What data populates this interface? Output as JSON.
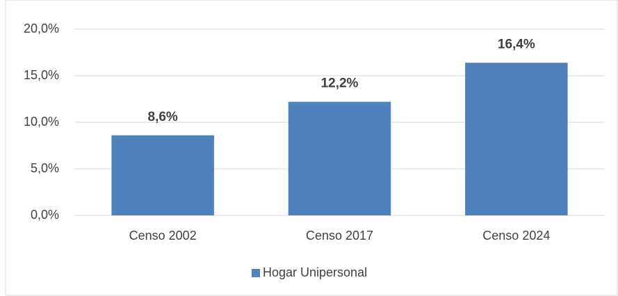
{
  "chart_data": {
    "type": "bar",
    "categories": [
      "Censo 2002",
      "Censo 2017",
      "Censo 2024"
    ],
    "series": [
      {
        "name": "Hogar Unipersonal",
        "color": "#4f81bd",
        "values": [
          8.6,
          12.2,
          16.4
        ],
        "value_labels": [
          "8,6%",
          "12,2%",
          "16,4%"
        ]
      }
    ],
    "ylim": [
      0,
      20
    ],
    "yticks": [
      {
        "value": 0,
        "label": "0,0%"
      },
      {
        "value": 5,
        "label": "5,0%"
      },
      {
        "value": 10,
        "label": "10,0%"
      },
      {
        "value": 15,
        "label": "15,0%"
      },
      {
        "value": 20,
        "label": "20,0%"
      }
    ],
    "grid": true,
    "legend": "bottom"
  }
}
